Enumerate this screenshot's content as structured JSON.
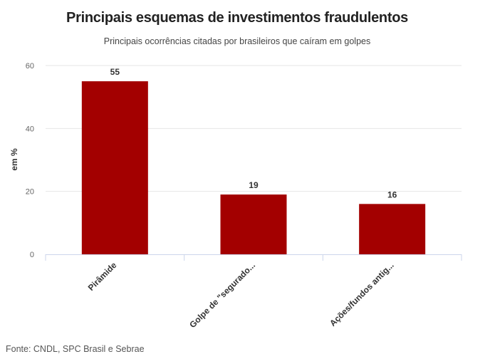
{
  "chart_data": {
    "type": "bar",
    "title": "Principais esquemas de investimentos fraudulentos",
    "subtitle": "Principais ocorrências citadas por brasileiros que caíram em golpes",
    "categories": [
      "Pirâmide",
      "Golpe de \"segurado...",
      "Ações/fundos antig..."
    ],
    "series": [
      {
        "values": [
          55,
          19,
          16
        ]
      }
    ],
    "xlabel": "",
    "ylabel": "em %",
    "ylim": [
      0,
      60
    ],
    "yticks": [
      0,
      20,
      40,
      60
    ],
    "grid": true,
    "legend": "none",
    "bar_color": "#a30000"
  },
  "source": "Fonte: CNDL, SPC Brasil e Sebrae"
}
